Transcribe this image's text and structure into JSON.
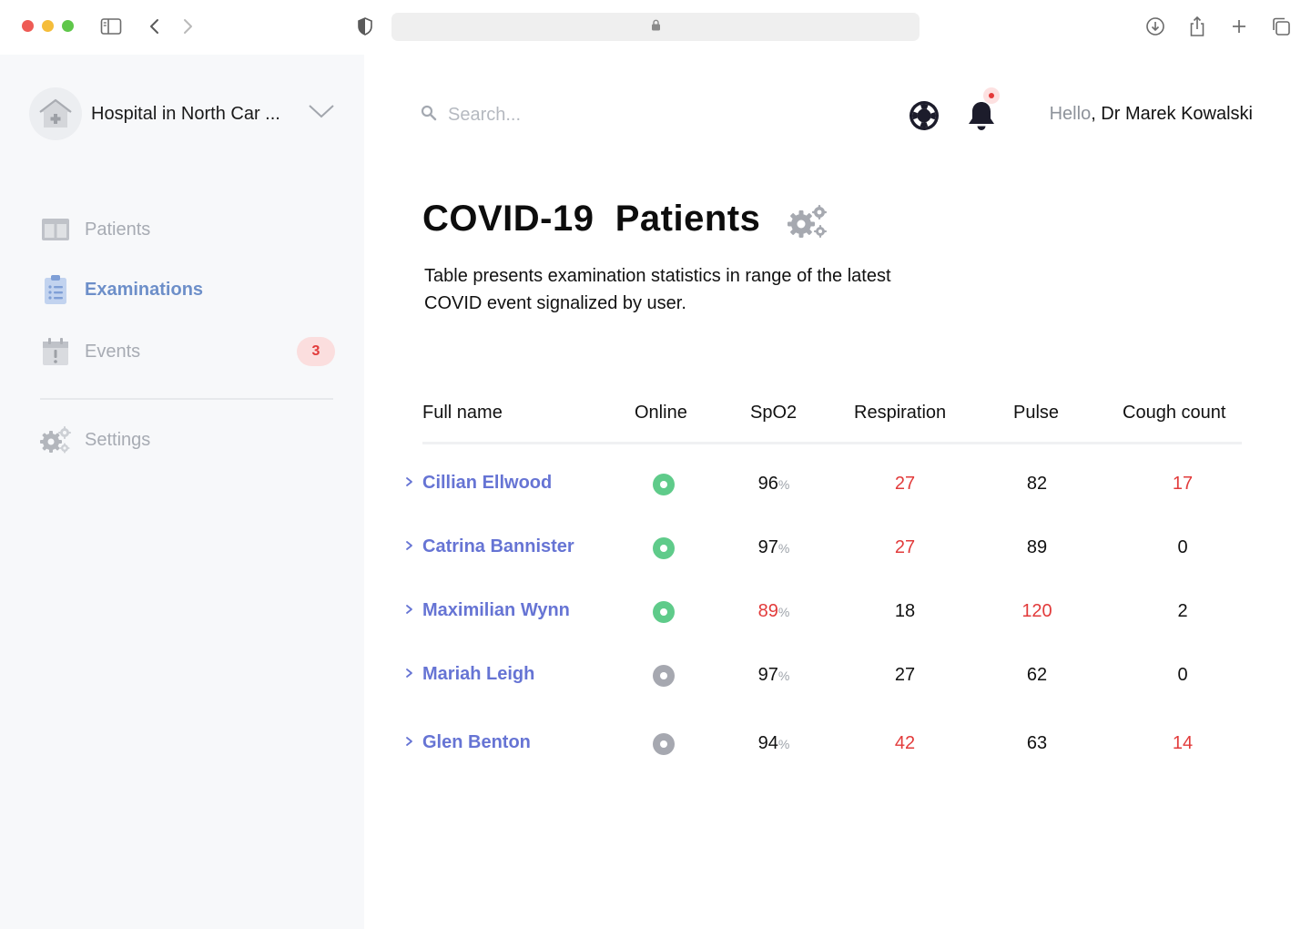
{
  "browser": {
    "icons": [
      "sidebar-toggle-icon",
      "back-icon",
      "forward-icon",
      "shield-icon",
      "lock-icon",
      "download-icon",
      "share-icon",
      "new-tab-icon",
      "tabs-overview-icon"
    ]
  },
  "sidebar": {
    "hospital_name": "Hospital in North Car ...",
    "items": [
      {
        "label": "Patients",
        "icon": "columns-icon",
        "active": false
      },
      {
        "label": "Examinations",
        "icon": "clipboard-icon",
        "active": true
      },
      {
        "label": "Events",
        "icon": "calendar-alert-icon",
        "active": false,
        "badge": "3"
      },
      {
        "label": "Settings",
        "icon": "gears-icon",
        "active": false
      }
    ]
  },
  "header": {
    "search_placeholder": "Search...",
    "greeting_hello": "Hello",
    "greeting_name": ", Dr Marek Kowalski"
  },
  "page": {
    "title": "COVID-19  Patients",
    "description": "Table presents examination statistics in range of the latest COVID event signalized by user."
  },
  "table": {
    "columns": [
      "Full name",
      "Online",
      "SpO2",
      "Respiration",
      "Pulse",
      "Cough count"
    ],
    "pct_symbol": "%",
    "rows": [
      {
        "name": "Cillian Ellwood",
        "online": true,
        "spo2": "96",
        "spo2_alert": false,
        "respiration": "27",
        "resp_alert": true,
        "pulse": "82",
        "pulse_alert": false,
        "cough": "17",
        "cough_alert": true
      },
      {
        "name": "Catrina Bannister",
        "online": true,
        "spo2": "97",
        "spo2_alert": false,
        "respiration": "27",
        "resp_alert": true,
        "pulse": "89",
        "pulse_alert": false,
        "cough": "0",
        "cough_alert": false
      },
      {
        "name": "Maximilian Wynn",
        "online": true,
        "spo2": "89",
        "spo2_alert": true,
        "respiration": "18",
        "resp_alert": false,
        "pulse": "120",
        "pulse_alert": true,
        "cough": "2",
        "cough_alert": false
      },
      {
        "name": "Mariah Leigh",
        "online": false,
        "spo2": "97",
        "spo2_alert": false,
        "respiration": "27",
        "resp_alert": false,
        "pulse": "62",
        "pulse_alert": false,
        "cough": "0",
        "cough_alert": false
      },
      {
        "name": "Glen Benton",
        "online": false,
        "spo2": "94",
        "spo2_alert": false,
        "respiration": "42",
        "resp_alert": true,
        "pulse": "63",
        "pulse_alert": false,
        "cough": "14",
        "cough_alert": true
      }
    ]
  },
  "colors": {
    "accent": "#6674d4",
    "active_nav": "#6d8fc9",
    "alert": "#e23b3b",
    "online": "#5fcb8a",
    "offline": "#a6a8b0"
  }
}
